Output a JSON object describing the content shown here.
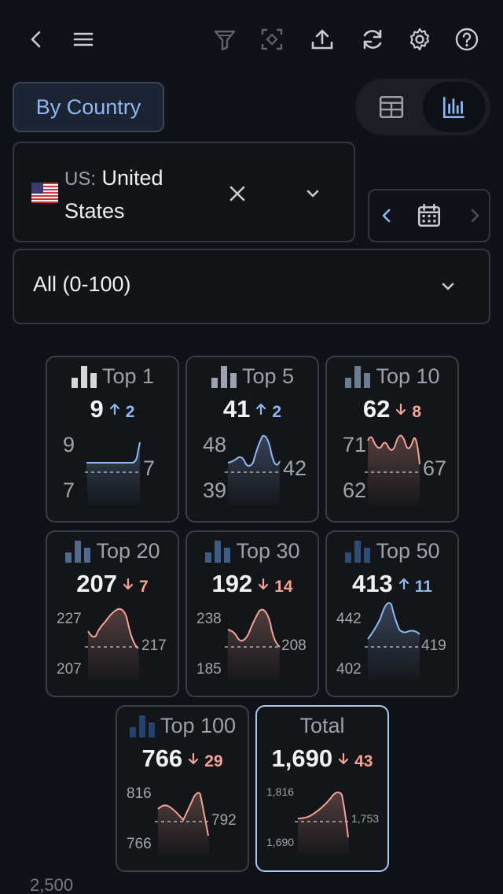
{
  "toolbar": {
    "icons": [
      "back-icon",
      "menu-icon",
      "filter-icon",
      "focus-icon",
      "upload-icon",
      "refresh-icon",
      "gear-icon",
      "help-icon"
    ]
  },
  "group_button": {
    "label": "By Country"
  },
  "view_toggle": {
    "options": [
      "table-icon",
      "bar-chart-icon"
    ],
    "selected": "bar-chart-icon"
  },
  "country_select": {
    "code": "US:",
    "name": "United States",
    "flag": "us-flag-icon"
  },
  "range_select": {
    "value": "All (0-100)"
  },
  "colors": {
    "up": "#8fb8f3",
    "down": "#f3a397",
    "background": "#101217",
    "accent": "#a9c9f5"
  },
  "cards": [
    {
      "title": "Top 1",
      "value": "9",
      "delta": "2",
      "dir": "up",
      "max": "9",
      "min": "7",
      "last": "7"
    },
    {
      "title": "Top 5",
      "value": "41",
      "delta": "2",
      "dir": "up",
      "max": "48",
      "min": "39",
      "last": "42"
    },
    {
      "title": "Top 10",
      "value": "62",
      "delta": "8",
      "dir": "down",
      "max": "71",
      "min": "62",
      "last": "67"
    },
    {
      "title": "Top 20",
      "value": "207",
      "delta": "7",
      "dir": "down",
      "max": "227",
      "min": "207",
      "last": "217"
    },
    {
      "title": "Top 30",
      "value": "192",
      "delta": "14",
      "dir": "down",
      "max": "238",
      "min": "185",
      "last": "208"
    },
    {
      "title": "Top 50",
      "value": "413",
      "delta": "11",
      "dir": "up",
      "max": "442",
      "min": "402",
      "last": "419"
    },
    {
      "title": "Top 100",
      "value": "766",
      "delta": "29",
      "dir": "down",
      "max": "816",
      "min": "766",
      "last": "792"
    },
    {
      "title": "Total",
      "value": "1,690",
      "delta": "43",
      "dir": "down",
      "max": "1,816",
      "min": "1,690",
      "last": "1,753"
    }
  ],
  "bottom_axis_label": "2,500"
}
